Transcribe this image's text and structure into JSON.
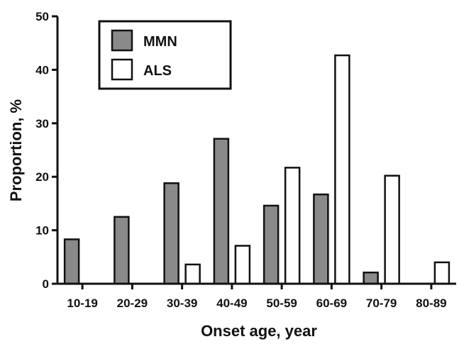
{
  "chart_data": {
    "type": "bar",
    "title": "",
    "xlabel": "Onset age, year",
    "ylabel": "Proportion, %",
    "ylim": [
      0,
      50
    ],
    "yticks": [
      "0",
      "10",
      "20",
      "30",
      "40",
      "50"
    ],
    "categories": [
      "10-19",
      "20-29",
      "30-39",
      "40-49",
      "50-59",
      "60-69",
      "70-79",
      "80-89"
    ],
    "series": [
      {
        "name": "MMN",
        "values": [
          8.3,
          12.5,
          18.8,
          27.1,
          14.6,
          16.7,
          2.1,
          0
        ],
        "color": "#8a8a8a"
      },
      {
        "name": "ALS",
        "values": [
          0,
          0,
          3.6,
          7.1,
          21.7,
          42.7,
          20.2,
          4.0
        ],
        "color": "#ffffff"
      }
    ],
    "grid": false,
    "legend": {
      "placement": "top-left",
      "entries": [
        "MMN",
        "ALS"
      ]
    }
  }
}
